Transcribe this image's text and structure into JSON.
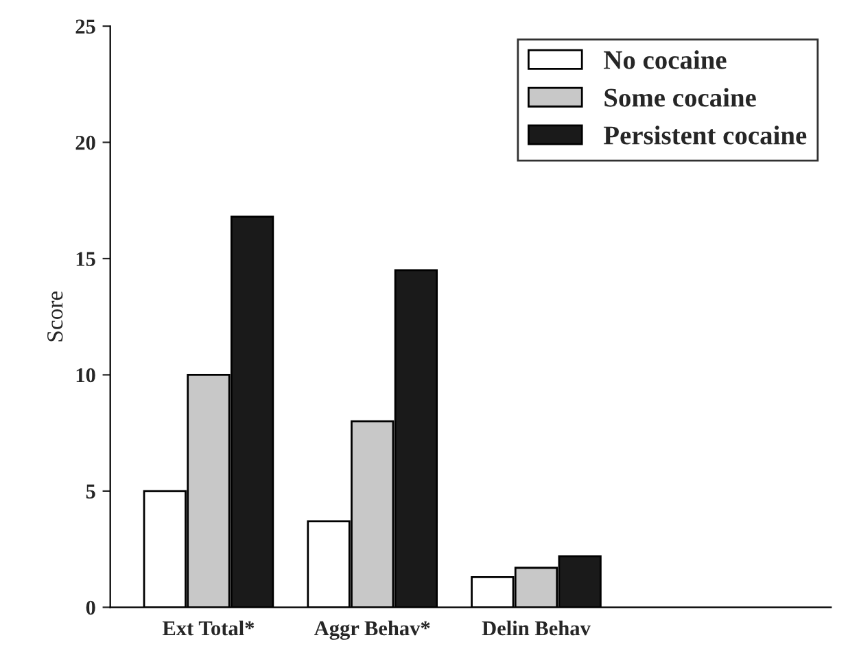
{
  "chart_data": {
    "type": "bar",
    "ylabel": "Score",
    "categories": [
      "Ext Total*",
      "Aggr Behav*",
      "Delin Behav"
    ],
    "series": [
      {
        "name": "No cocaine",
        "color": "#ffffff",
        "values": [
          5,
          3.7,
          1.3
        ]
      },
      {
        "name": "Some cocaine",
        "color": "#c8c8c8",
        "values": [
          10,
          8,
          1.7
        ]
      },
      {
        "name": "Persistent cocaine",
        "color": "#1a1a1a",
        "values": [
          16.8,
          14.5,
          2.2
        ]
      }
    ],
    "ylim": [
      0,
      25
    ],
    "yticks": [
      0,
      5,
      10,
      15,
      20,
      25
    ],
    "grid": false,
    "legend": "top right"
  }
}
